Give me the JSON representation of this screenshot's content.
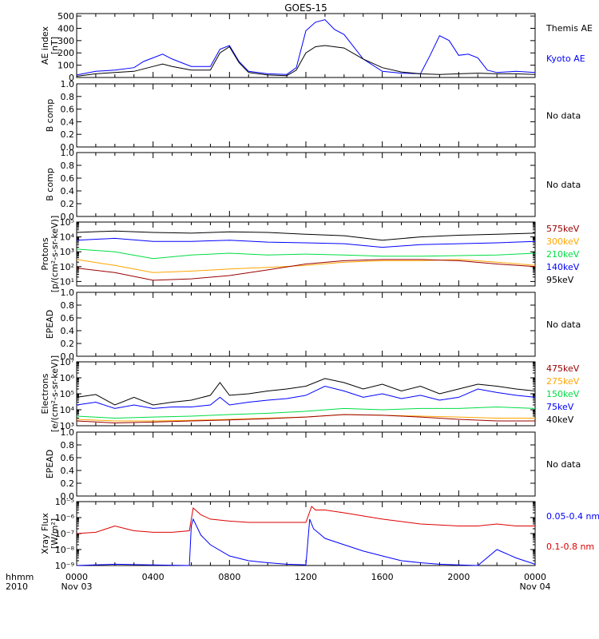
{
  "title": "GOES-15",
  "x_axis": {
    "tick_labels": [
      "0000",
      "0400",
      "0800",
      "1200",
      "1600",
      "2000",
      "0000"
    ],
    "left_label_1": "hhmm",
    "left_label_2": "2010",
    "date_start": "Nov 03",
    "date_end": "Nov 04"
  },
  "colors": {
    "black": "#000000",
    "blue": "#0000ff",
    "green": "#00dd44",
    "orange": "#ffa500",
    "darkred": "#990000",
    "red": "#dd0000"
  },
  "chart_data": [
    {
      "type": "line",
      "ylabel": [
        "AE index",
        "[nT]"
      ],
      "ylim": [
        0,
        520
      ],
      "yticks": [
        "0",
        "100",
        "200",
        "300",
        "400",
        "500"
      ],
      "series": [
        {
          "name": "Kyoto AE",
          "color": "#0000ff",
          "x": [
            0,
            1,
            2,
            3,
            3.5,
            4,
            4.5,
            5,
            6,
            7,
            7.5,
            8,
            8.5,
            9,
            10,
            11,
            11.5,
            12,
            12.5,
            13,
            13.5,
            14,
            15,
            16,
            17,
            18,
            18.5,
            19,
            19.5,
            20,
            20.5,
            21,
            21.5,
            22,
            23,
            24
          ],
          "y": [
            20,
            50,
            60,
            80,
            130,
            160,
            190,
            150,
            90,
            90,
            230,
            260,
            130,
            50,
            30,
            25,
            80,
            380,
            450,
            470,
            390,
            350,
            150,
            50,
            35,
            30,
            180,
            340,
            300,
            180,
            190,
            160,
            60,
            40,
            50,
            40
          ]
        },
        {
          "name": "Themis AE",
          "color": "#000000",
          "x": [
            0,
            1,
            2,
            3,
            4,
            4.5,
            5,
            6,
            7,
            7.5,
            8,
            8.5,
            9,
            10,
            11,
            11.5,
            12,
            12.5,
            13,
            14,
            15,
            16,
            17,
            18,
            19,
            20,
            21,
            22,
            23,
            24
          ],
          "y": [
            10,
            30,
            40,
            50,
            90,
            110,
            90,
            60,
            60,
            200,
            250,
            120,
            40,
            20,
            15,
            60,
            200,
            250,
            260,
            240,
            150,
            80,
            45,
            30,
            25,
            30,
            35,
            30,
            30,
            25
          ]
        }
      ]
    },
    {
      "type": "line",
      "ylabel": [
        "B comp"
      ],
      "ylim": [
        0,
        1
      ],
      "yticks": [
        "0.0",
        "0.2",
        "0.4",
        "0.6",
        "0.8",
        "1.0"
      ],
      "note": "No data",
      "series": []
    },
    {
      "type": "line",
      "ylabel": [
        "B comp"
      ],
      "ylim": [
        0,
        1
      ],
      "yticks": [
        "0.0",
        "0.2",
        "0.4",
        "0.6",
        "0.8",
        "1.0"
      ],
      "note": "No data",
      "series": []
    },
    {
      "type": "line",
      "log": true,
      "ylabel": [
        "Protons",
        "[p/(cm²-s-sr-keV)]"
      ],
      "ylim": [
        5,
        100000
      ],
      "yticks": [
        "10¹",
        "10²",
        "10³",
        "10⁴",
        "10⁵"
      ],
      "series": [
        {
          "name": "95keV",
          "color": "#000000",
          "x": [
            0,
            2,
            4,
            6,
            8,
            10,
            12,
            14,
            16,
            18,
            20,
            22,
            24
          ],
          "y": [
            20000,
            25000,
            20000,
            18000,
            22000,
            20000,
            15000,
            12000,
            6000,
            10000,
            13000,
            15000,
            18000
          ]
        },
        {
          "name": "140keV",
          "color": "#0000ff",
          "x": [
            0,
            2,
            4,
            6,
            8,
            10,
            12,
            14,
            16,
            18,
            20,
            22,
            24
          ],
          "y": [
            6000,
            8000,
            5000,
            5000,
            6000,
            4500,
            4000,
            3500,
            2000,
            3000,
            3500,
            4000,
            5000
          ]
        },
        {
          "name": "210keV",
          "color": "#00dd44",
          "x": [
            0,
            2,
            4,
            6,
            8,
            10,
            12,
            14,
            16,
            18,
            20,
            22,
            24
          ],
          "y": [
            1500,
            1000,
            350,
            600,
            800,
            600,
            700,
            600,
            500,
            500,
            550,
            600,
            800
          ]
        },
        {
          "name": "300keV",
          "color": "#ffa500",
          "x": [
            0,
            2,
            4,
            6,
            8,
            10,
            12,
            14,
            16,
            18,
            20,
            22,
            24
          ],
          "y": [
            300,
            120,
            40,
            50,
            70,
            90,
            120,
            200,
            250,
            250,
            300,
            200,
            120
          ]
        },
        {
          "name": "575keV",
          "color": "#990000",
          "x": [
            0,
            2,
            4,
            6,
            8,
            10,
            12,
            14,
            16,
            18,
            20,
            22,
            24
          ],
          "y": [
            80,
            40,
            12,
            15,
            25,
            60,
            150,
            250,
            300,
            300,
            250,
            150,
            100
          ]
        }
      ]
    },
    {
      "type": "line",
      "ylabel": [
        "EPEAD"
      ],
      "ylim": [
        0,
        1
      ],
      "yticks": [
        "0.0",
        "0.2",
        "0.4",
        "0.6",
        "0.8",
        "1.0"
      ],
      "note": "No data",
      "series": []
    },
    {
      "type": "line",
      "log": true,
      "ylabel": [
        "Electrons",
        "[e/(cm²-s-sr-keV)]"
      ],
      "ylim": [
        1000,
        10000000
      ],
      "yticks": [
        "10³",
        "10⁴",
        "10⁵",
        "10⁶",
        "10⁷"
      ],
      "series": [
        {
          "name": "40keV",
          "color": "#000000",
          "x": [
            0,
            1,
            2,
            3,
            4,
            5,
            6,
            7,
            7.5,
            8,
            9,
            10,
            11,
            12,
            13,
            14,
            15,
            16,
            17,
            18,
            19,
            20,
            21,
            22,
            23,
            24
          ],
          "y": [
            60000,
            90000,
            20000,
            60000,
            20000,
            30000,
            40000,
            80000,
            500000,
            80000,
            100000,
            150000,
            200000,
            300000,
            900000,
            500000,
            200000,
            400000,
            150000,
            300000,
            100000,
            200000,
            400000,
            300000,
            200000,
            150000
          ]
        },
        {
          "name": "75keV",
          "color": "#0000ff",
          "x": [
            0,
            1,
            2,
            3,
            4,
            5,
            6,
            7,
            7.5,
            8,
            9,
            10,
            11,
            12,
            13,
            14,
            15,
            16,
            17,
            18,
            19,
            20,
            21,
            22,
            23,
            24
          ],
          "y": [
            20000,
            30000,
            12000,
            20000,
            12000,
            15000,
            15000,
            20000,
            60000,
            20000,
            30000,
            40000,
            50000,
            80000,
            300000,
            150000,
            60000,
            100000,
            50000,
            80000,
            40000,
            60000,
            200000,
            120000,
            80000,
            60000
          ]
        },
        {
          "name": "150keV",
          "color": "#00dd44",
          "x": [
            0,
            2,
            4,
            6,
            8,
            10,
            12,
            14,
            16,
            18,
            20,
            22,
            24
          ],
          "y": [
            4000,
            3000,
            3500,
            4000,
            5000,
            6000,
            8000,
            12000,
            10000,
            12000,
            12000,
            15000,
            12000
          ]
        },
        {
          "name": "275keV",
          "color": "#ffa500",
          "x": [
            0,
            2,
            4,
            6,
            8,
            10,
            12,
            14,
            16,
            18,
            20,
            22,
            24
          ],
          "y": [
            2500,
            2000,
            2000,
            2200,
            2500,
            3000,
            3500,
            5000,
            4500,
            4000,
            3500,
            3000,
            3000
          ]
        },
        {
          "name": "475keV",
          "color": "#990000",
          "x": [
            0,
            2,
            4,
            6,
            8,
            10,
            12,
            14,
            16,
            18,
            20,
            22,
            24
          ],
          "y": [
            2000,
            1500,
            1700,
            2000,
            2300,
            2800,
            3500,
            5000,
            4500,
            3500,
            2500,
            2000,
            2000
          ]
        }
      ]
    },
    {
      "type": "line",
      "ylabel": [
        "EPEAD"
      ],
      "ylim": [
        0,
        1
      ],
      "yticks": [
        "0.0",
        "0.2",
        "0.4",
        "0.6",
        "0.8",
        "1.0"
      ],
      "note": "No data",
      "series": []
    },
    {
      "type": "line",
      "log": true,
      "ylabel": [
        "Xray Flux",
        "[W/m²]"
      ],
      "ylim": [
        1e-09,
        1e-05
      ],
      "yticks": [
        "10⁻⁹",
        "10⁻⁸",
        "10⁻⁷",
        "10⁻⁶",
        "10⁻⁵"
      ],
      "series": [
        {
          "name": "0.1-0.8 nm",
          "color": "#dd0000",
          "x": [
            0,
            1,
            2,
            3,
            4,
            5,
            5.9,
            6.1,
            6.5,
            7,
            8,
            9,
            10,
            11,
            12,
            12.3,
            12.5,
            13,
            14,
            16,
            18,
            20,
            21,
            22,
            23,
            24
          ],
          "y": [
            1e-07,
            1.2e-07,
            3e-07,
            1.5e-07,
            1.2e-07,
            1.2e-07,
            1.5e-07,
            4e-06,
            1.5e-06,
            8e-07,
            6e-07,
            5e-07,
            5e-07,
            5e-07,
            5e-07,
            5e-06,
            3e-06,
            3e-06,
            2e-06,
            8e-07,
            4e-07,
            3e-07,
            3e-07,
            4e-07,
            3e-07,
            3e-07
          ]
        },
        {
          "name": "0.05-0.4 nm",
          "color": "#0000ff",
          "x": [
            0,
            2,
            4,
            5.9,
            6.0,
            6.1,
            6.5,
            7,
            8,
            9,
            10,
            11,
            12,
            12.2,
            12.4,
            13,
            14,
            15,
            16,
            17,
            18,
            19,
            20,
            21,
            22,
            23,
            24
          ],
          "y": [
            1e-09,
            1.2e-09,
            1.1e-09,
            1e-09,
            3e-07,
            8e-07,
            8e-08,
            2e-08,
            4e-09,
            2e-09,
            1.5e-09,
            1.2e-09,
            1.1e-09,
            8e-07,
            2e-07,
            5e-08,
            2e-08,
            8e-09,
            4e-09,
            2e-09,
            1.5e-09,
            1.2e-09,
            1.1e-09,
            1e-09,
            1e-08,
            3e-09,
            1.2e-09
          ]
        }
      ]
    }
  ]
}
